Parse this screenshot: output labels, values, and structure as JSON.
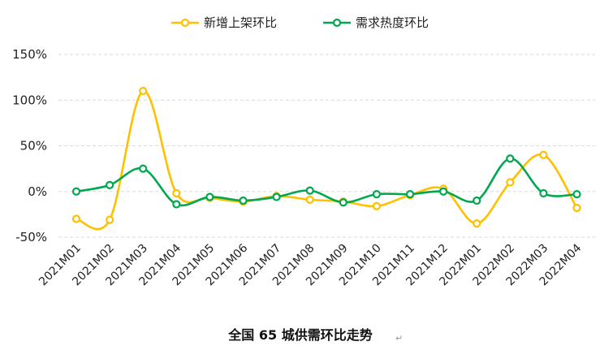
{
  "chart_data": {
    "type": "line",
    "smooth": true,
    "title": "全国 65 城供需环比走势",
    "title_mark": "↵",
    "ylim": [
      -50,
      150
    ],
    "yticks": [
      -50,
      0,
      50,
      100,
      150
    ],
    "ytick_labels": [
      "-50%",
      "0%",
      "50%",
      "100%",
      "150%"
    ],
    "grid": "horizontal-dashed",
    "legend_position": "top-center",
    "categories": [
      "2021M01",
      "2021M02",
      "2021M03",
      "2021M04",
      "2021M05",
      "2021M06",
      "2021M07",
      "2021M08",
      "2021M09",
      "2021M10",
      "2021M11",
      "2021M12",
      "2022M01",
      "2022M02",
      "2022M03",
      "2022M04"
    ],
    "series": [
      {
        "name": "新增上架环比",
        "color": "#FFC000",
        "values": [
          -30,
          -31,
          110,
          -2,
          -7,
          -11,
          -5,
          -9,
          -11,
          -16,
          -4,
          3,
          -35,
          10,
          40,
          -18
        ]
      },
      {
        "name": "需求热度环比",
        "color": "#00A84E",
        "values": [
          0,
          7,
          25,
          -14,
          -6,
          -10,
          -6,
          1,
          -12,
          -3,
          -3,
          0,
          -10,
          36,
          -2,
          -3
        ]
      }
    ]
  }
}
